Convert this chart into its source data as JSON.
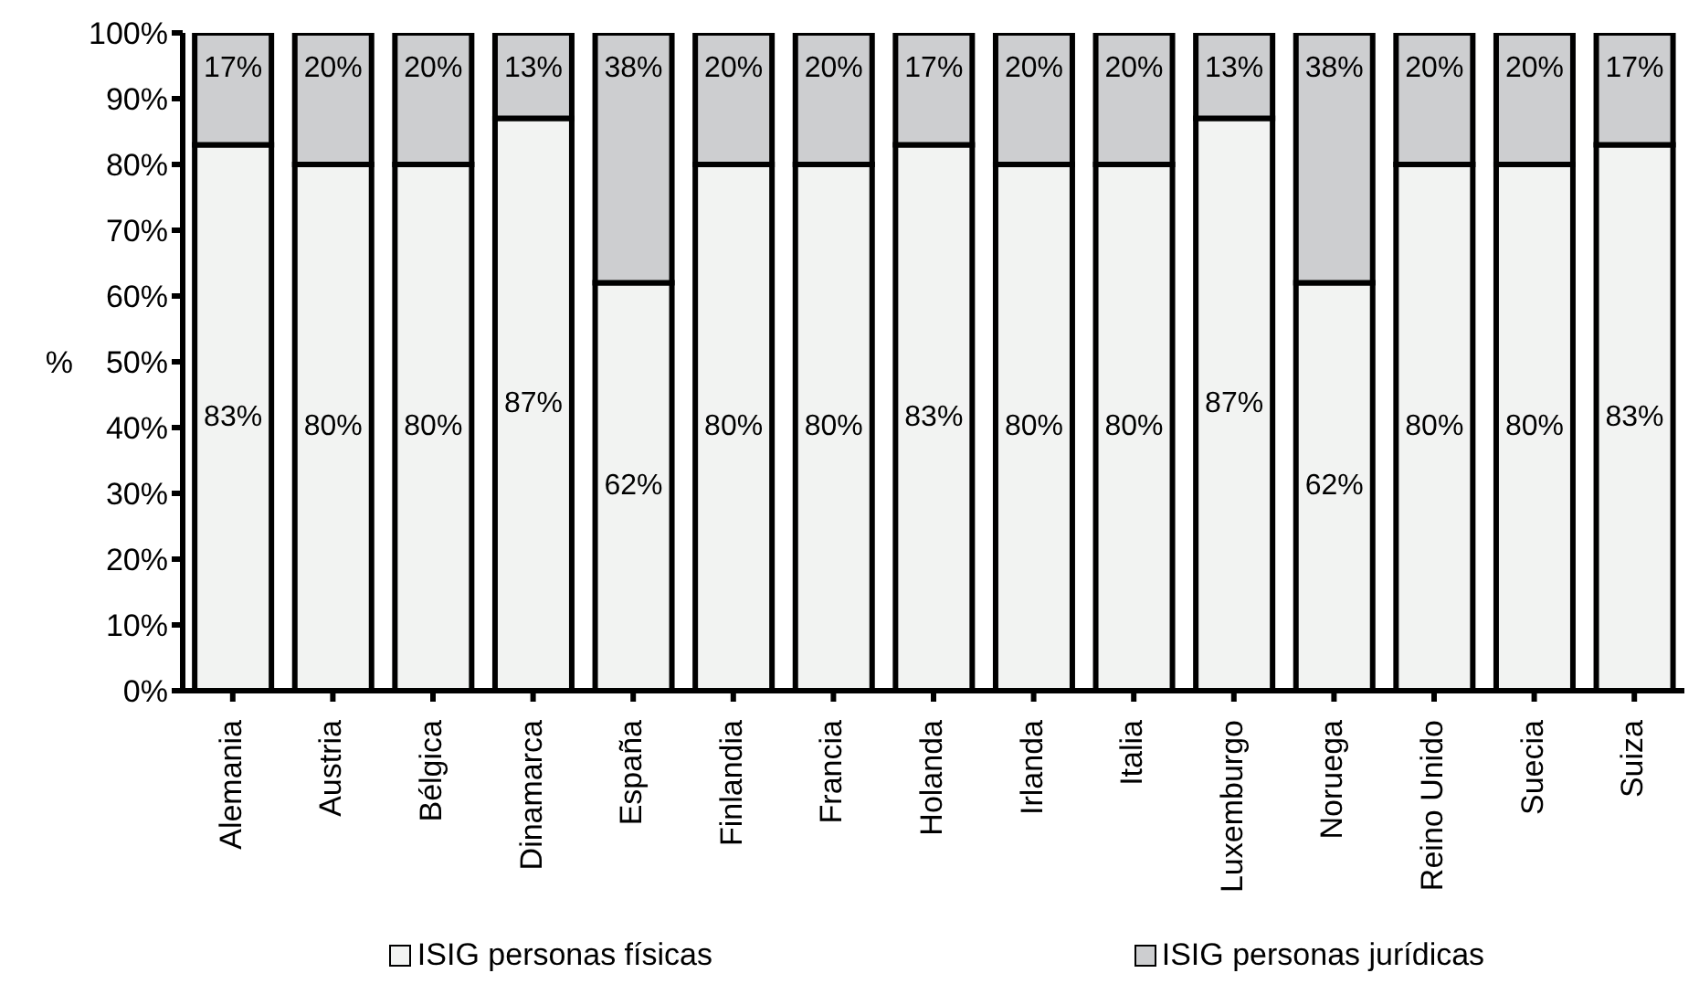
{
  "chart_data": {
    "type": "bar",
    "stacked": true,
    "ylabel": "%",
    "categories": [
      "Alemania",
      "Austria",
      "Bélgica",
      "Dinamarca",
      "España",
      "Finlandia",
      "Francia",
      "Holanda",
      "Irlanda",
      "Italia",
      "Luxemburgo",
      "Noruega",
      "Reino Unido",
      "Suecia",
      "Suiza"
    ],
    "series": [
      {
        "name": "ISIG personas físicas",
        "color": "#f2f3f2",
        "values": [
          83,
          80,
          80,
          87,
          62,
          80,
          80,
          83,
          80,
          80,
          87,
          62,
          80,
          80,
          83
        ],
        "value_labels": [
          "83%",
          "80%",
          "80%",
          "87%",
          "62%",
          "80%",
          "80%",
          "83%",
          "80%",
          "80%",
          "87%",
          "62%",
          "80%",
          "80%",
          "83%"
        ]
      },
      {
        "name": "ISIG personas jurídicas",
        "color": "#cdced0",
        "values": [
          17,
          20,
          20,
          13,
          38,
          20,
          20,
          17,
          20,
          20,
          13,
          38,
          20,
          20,
          17
        ],
        "value_labels": [
          "17%",
          "20%",
          "20%",
          "13%",
          "38%",
          "20%",
          "20%",
          "17%",
          "20%",
          "20%",
          "13%",
          "38%",
          "20%",
          "20%",
          "17%"
        ]
      }
    ],
    "ylim": [
      0,
      100
    ],
    "yticks": [
      {
        "value": 0,
        "label": "0%"
      },
      {
        "value": 10,
        "label": "10%"
      },
      {
        "value": 20,
        "label": "20%"
      },
      {
        "value": 30,
        "label": "30%"
      },
      {
        "value": 40,
        "label": "40%"
      },
      {
        "value": 50,
        "label": "50%"
      },
      {
        "value": 60,
        "label": "60%"
      },
      {
        "value": 70,
        "label": "70%"
      },
      {
        "value": 80,
        "label": "80%"
      },
      {
        "value": 90,
        "label": "90%"
      },
      {
        "value": 100,
        "label": "100%"
      }
    ],
    "grid": false,
    "legend": "bottom"
  }
}
